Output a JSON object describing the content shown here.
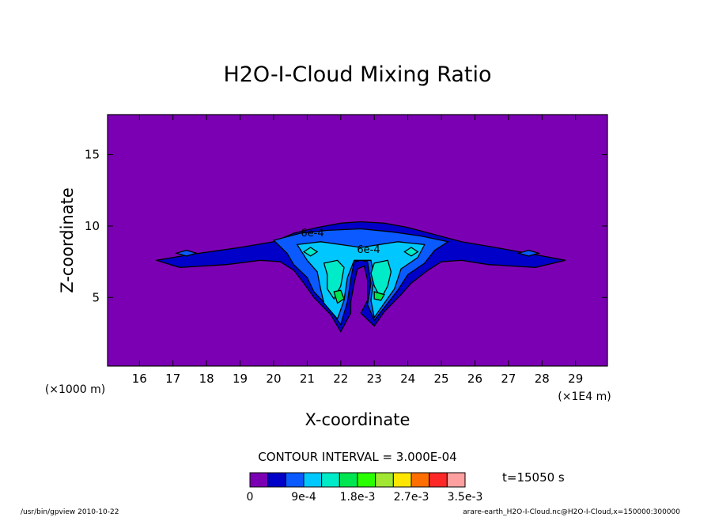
{
  "chart_data": {
    "type": "contour",
    "title": "H2O-I-Cloud Mixing Ratio",
    "xlabel": "X-coordinate",
    "ylabel": "Z-coordinate",
    "x_unit_note": "(×1E4 m)",
    "y_unit_note": "(×1000 m)",
    "xlim": [
      15.05,
      29.95
    ],
    "ylim": [
      0.2,
      17.8
    ],
    "xticks": [
      16,
      17,
      18,
      19,
      20,
      21,
      22,
      23,
      24,
      25,
      26,
      27,
      28,
      29
    ],
    "yticks": [
      5,
      10,
      15
    ],
    "contour_interval_text": "CONTOUR INTERVAL = 3.000E-04",
    "time_text": "t=15050 s",
    "colorbar": {
      "colors": [
        "#7b00b4",
        "#0000c8",
        "#0a5aff",
        "#00c8ff",
        "#00ebc8",
        "#00e650",
        "#2aff00",
        "#a0e632",
        "#ffe600",
        "#ff6e00",
        "#ff2828",
        "#ffa0a0"
      ],
      "labels": [
        "0",
        "9e-4",
        "1.8e-3",
        "2.7e-3",
        "3.5e-3"
      ]
    },
    "contour_labels": [
      "6e-4",
      "6e-4"
    ],
    "fields": {
      "background": "#7b00b4",
      "level_1": "#0000c8",
      "level_2": "#0a5aff",
      "level_3": "#00c8ff",
      "level_4": "#00ebc8",
      "level_5": "#00e650"
    }
  },
  "footer": {
    "left": "/usr/bin/gpview  2010-10-22",
    "right": "arare-earth_H2O-I-Cloud.nc@H2O-I-Cloud,x=150000:300000"
  }
}
